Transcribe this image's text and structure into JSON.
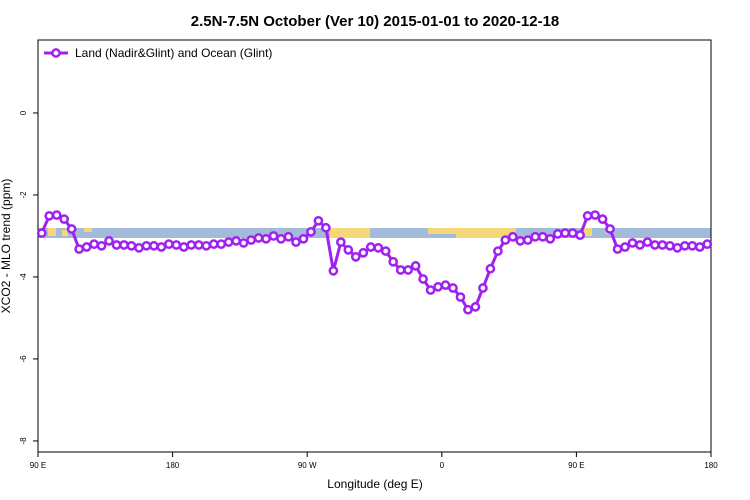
{
  "chart_data": {
    "type": "line",
    "title": "2.5N-7.5N October (Ver 10)   2015-01-01 to 2020-12-18",
    "xlabel": "Longitude (deg E)",
    "ylabel": "XCO2 - MLO trend (ppm)",
    "xlim": [
      90,
      540
    ],
    "ylim": [
      -8.27,
      1.78
    ],
    "xticks": [
      {
        "value": 90,
        "label": "90 E"
      },
      180,
      {
        "value": 270,
        "label": "90 W"
      },
      {
        "value": 360,
        "label": "0"
      },
      {
        "value": 450,
        "label": "90 E"
      },
      {
        "value": 540,
        "label": "180"
      }
    ],
    "yticks": [
      0,
      -2,
      -4,
      -6,
      -8
    ],
    "legend": "top-left",
    "x": [
      92.5,
      97.5,
      102.5,
      107.5,
      112.5,
      117.5,
      122.5,
      127.5,
      132.5,
      137.5,
      142.5,
      147.5,
      152.5,
      157.5,
      162.5,
      167.5,
      172.5,
      177.5,
      182.5,
      187.5,
      192.5,
      197.5,
      202.5,
      207.5,
      212.5,
      217.5,
      222.5,
      227.5,
      232.5,
      237.5,
      242.5,
      247.5,
      252.5,
      257.5,
      262.5,
      267.5,
      272.5,
      277.5,
      282.5,
      287.5,
      292.5,
      297.5,
      302.5,
      307.5,
      312.5,
      317.5,
      322.5,
      327.5,
      332.5,
      337.5,
      342.5,
      347.5,
      352.5,
      357.5,
      362.5,
      367.5,
      372.5,
      377.5,
      382.5,
      387.5,
      392.5,
      397.5,
      402.5,
      407.5,
      412.5,
      417.5,
      422.5,
      427.5,
      432.5,
      437.5,
      442.5,
      447.5,
      452.5,
      457.5,
      462.5,
      467.5,
      472.5,
      477.5,
      482.5,
      487.5,
      492.5,
      497.5,
      502.5,
      507.5,
      512.5,
      517.5,
      522.5,
      527.5,
      532.5,
      537.5
    ],
    "series": [
      {
        "name": "Land (Nadir&Glint) and Ocean (Glint)",
        "color": "#a020f0",
        "values": [
          -2.93,
          -2.51,
          -2.49,
          -2.59,
          -2.83,
          -3.32,
          -3.27,
          -3.2,
          -3.24,
          -3.12,
          -3.22,
          -3.22,
          -3.24,
          -3.29,
          -3.24,
          -3.24,
          -3.27,
          -3.2,
          -3.22,
          -3.27,
          -3.22,
          -3.22,
          -3.24,
          -3.2,
          -3.2,
          -3.15,
          -3.12,
          -3.17,
          -3.1,
          -3.05,
          -3.07,
          -3.0,
          -3.07,
          -3.02,
          -3.15,
          -3.07,
          -2.9,
          -2.63,
          -2.8,
          -3.85,
          -3.15,
          -3.34,
          -3.51,
          -3.41,
          -3.27,
          -3.29,
          -3.37,
          -3.63,
          -3.83,
          -3.83,
          -3.73,
          -4.05,
          -4.32,
          -4.24,
          -4.2,
          -4.27,
          -4.49,
          -4.8,
          -4.73,
          -4.27,
          -3.8,
          -3.37,
          -3.1,
          -3.02,
          -3.12,
          -3.1,
          -3.02,
          -3.02,
          -3.07,
          -2.95,
          -2.93,
          -2.93,
          -2.98,
          -2.51,
          -2.49,
          -2.59,
          -2.83,
          -3.32,
          -3.27,
          -3.17,
          -3.22,
          -3.15,
          -3.22,
          -3.22,
          -3.24,
          -3.29,
          -3.24,
          -3.24,
          -3.27,
          -3.2
        ]
      }
    ]
  }
}
